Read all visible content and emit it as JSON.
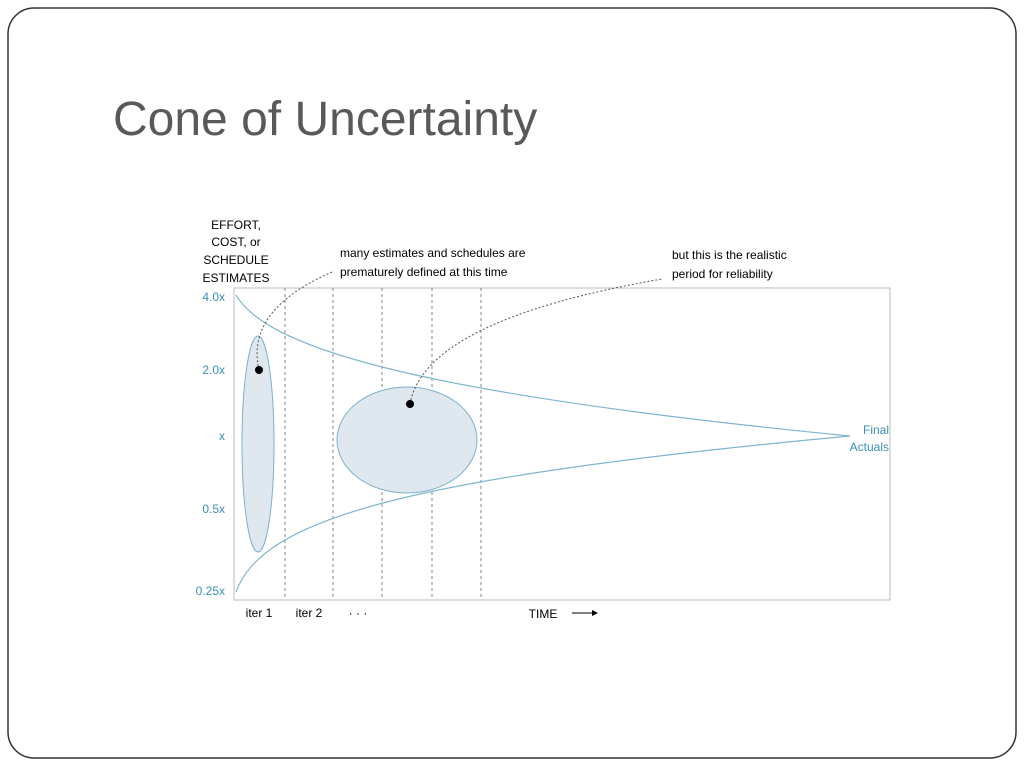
{
  "slide": {
    "title": "Cone of Uncertainty"
  },
  "diagram": {
    "y_axis_title": [
      "EFFORT,",
      "COST, or",
      "SCHEDULE",
      "ESTIMATES"
    ],
    "y_labels": [
      "4.0x",
      "2.0x",
      "x",
      "0.5x",
      "0.25x"
    ],
    "x_labels": [
      "iter 1",
      "iter 2",
      "· · ·"
    ],
    "x_axis_title": "TIME",
    "annotation_left": [
      "many estimates and schedules are",
      "prematurely defined at this time"
    ],
    "annotation_right": [
      "but this is the realistic",
      "period for reliability"
    ],
    "end_label": [
      "Final",
      "Actuals"
    ]
  }
}
